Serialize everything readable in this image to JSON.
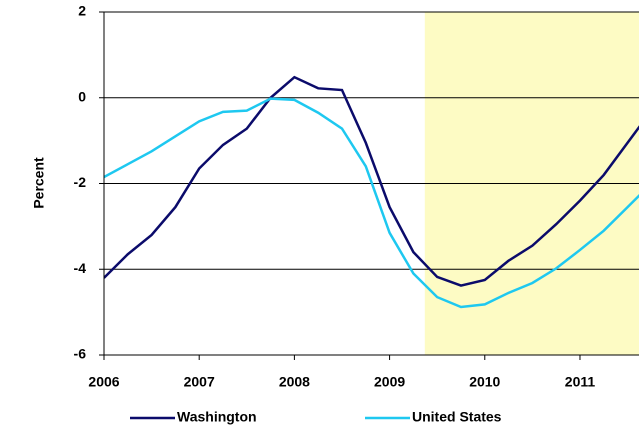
{
  "chart_data": {
    "type": "line",
    "y_label": "Percent",
    "x": [
      2006,
      2006.25,
      2006.5,
      2006.75,
      2007,
      2007.25,
      2007.5,
      2007.75,
      2008,
      2008.25,
      2008.5,
      2008.75,
      2009,
      2009.25,
      2009.5,
      2009.75,
      2010,
      2010.25,
      2010.5,
      2010.75,
      2011,
      2011.25,
      2011.5,
      2011.75
    ],
    "series": [
      {
        "name": "Washington",
        "color": "#0b0b6b",
        "values": [
          -4.2,
          -3.65,
          -3.2,
          -2.55,
          -1.65,
          -1.1,
          -0.72,
          0.0,
          0.48,
          0.22,
          0.18,
          -1.05,
          -2.55,
          -3.6,
          -4.18,
          -4.38,
          -4.25,
          -3.8,
          -3.45,
          -2.95,
          -2.4,
          -1.8,
          -1.05,
          -0.3
        ]
      },
      {
        "name": "United States",
        "color": "#1ec8f0",
        "values": [
          -1.85,
          -1.55,
          -1.25,
          -0.9,
          -0.55,
          -0.33,
          -0.3,
          -0.02,
          -0.05,
          -0.35,
          -0.72,
          -1.6,
          -3.15,
          -4.1,
          -4.65,
          -4.88,
          -4.82,
          -4.55,
          -4.32,
          -3.98,
          -3.55,
          -3.1,
          -2.55,
          -2.0
        ]
      }
    ],
    "xlim": [
      2006,
      2011.62
    ],
    "xticks": [
      2006,
      2007,
      2008,
      2009,
      2010,
      2011
    ],
    "ylim": [
      -6,
      2
    ],
    "yticks": [
      2,
      0,
      -2,
      -4,
      -6
    ],
    "grid": true,
    "shade_from": 2009.37,
    "shade_color": "#fdfbc4",
    "legend": "bottom"
  }
}
